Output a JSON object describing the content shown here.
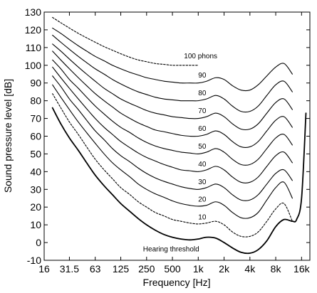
{
  "chart_data": {
    "type": "line",
    "title": "",
    "xlabel": "Frequency [Hz]",
    "ylabel": "Sound pressure level [dB]",
    "x_scale": "log",
    "xlim": [
      16,
      20000
    ],
    "ylim": [
      -10,
      130
    ],
    "grid": false,
    "legend": "none",
    "x_ticks": [
      {
        "value": 16,
        "label": "16"
      },
      {
        "value": 31.5,
        "label": "31.5"
      },
      {
        "value": 63,
        "label": "63"
      },
      {
        "value": 125,
        "label": "125"
      },
      {
        "value": 250,
        "label": "250"
      },
      {
        "value": 500,
        "label": "500"
      },
      {
        "value": 1000,
        "label": "1k"
      },
      {
        "value": 2000,
        "label": "2k"
      },
      {
        "value": 4000,
        "label": "4k"
      },
      {
        "value": 8000,
        "label": "8k"
      },
      {
        "value": 16000,
        "label": "16k"
      }
    ],
    "y_ticks": [
      {
        "value": -10,
        "label": "-10"
      },
      {
        "value": 0,
        "label": "0"
      },
      {
        "value": 10,
        "label": "10"
      },
      {
        "value": 20,
        "label": "20"
      },
      {
        "value": 30,
        "label": "30"
      },
      {
        "value": 40,
        "label": "40"
      },
      {
        "value": 50,
        "label": "50"
      },
      {
        "value": 60,
        "label": "60"
      },
      {
        "value": 70,
        "label": "70"
      },
      {
        "value": 80,
        "label": "80"
      },
      {
        "value": 90,
        "label": "90"
      },
      {
        "value": 100,
        "label": "100"
      },
      {
        "value": 110,
        "label": "110"
      },
      {
        "value": 120,
        "label": "120"
      },
      {
        "value": 130,
        "label": "130"
      }
    ],
    "annotations": [
      {
        "text": "100 phons",
        "x": 1000,
        "y": 104
      },
      {
        "text": "90",
        "x": 1000,
        "y": 93
      },
      {
        "text": "80",
        "x": 1000,
        "y": 83
      },
      {
        "text": "70",
        "x": 1000,
        "y": 73
      },
      {
        "text": "60",
        "x": 1000,
        "y": 63
      },
      {
        "text": "50",
        "x": 1000,
        "y": 53
      },
      {
        "text": "40",
        "x": 1000,
        "y": 43
      },
      {
        "text": "30",
        "x": 1000,
        "y": 33
      },
      {
        "text": "20",
        "x": 1000,
        "y": 23
      },
      {
        "text": "10",
        "x": 1000,
        "y": 13
      },
      {
        "text": "Hearing threshold",
        "x": 250,
        "y": -5
      }
    ],
    "series": [
      {
        "name": "Hearing threshold",
        "style": "solid-bold",
        "x": [
          20,
          25,
          31.5,
          40,
          50,
          63,
          80,
          100,
          125,
          160,
          200,
          250,
          315,
          400,
          500,
          630,
          800,
          1000,
          1250,
          1600,
          2000,
          2500,
          3150,
          4000,
          5000,
          6300,
          8000,
          10000,
          12500,
          14000,
          16000,
          18000
        ],
        "values": [
          76,
          67,
          59,
          52,
          45,
          38,
          32,
          27,
          22,
          17.5,
          13.5,
          10,
          7,
          4.5,
          3,
          2,
          1.5,
          2,
          3,
          2.5,
          0,
          -3,
          -5.5,
          -6,
          -4,
          1,
          9,
          13,
          12,
          13,
          25,
          73
        ]
      },
      {
        "name": "10",
        "style": "dashed",
        "x": [
          20,
          25,
          31.5,
          40,
          50,
          63,
          80,
          100,
          125,
          160,
          200,
          250,
          315,
          400,
          500,
          630,
          800,
          1000,
          1250,
          1600,
          2000,
          2500,
          3150,
          4000,
          5000,
          6300,
          8000,
          10000,
          12500
        ],
        "values": [
          84,
          76,
          68,
          61,
          54,
          47,
          41,
          36,
          31,
          27,
          23,
          20,
          17,
          15,
          13,
          12,
          11,
          10.5,
          11,
          12,
          10,
          6,
          3.5,
          3.5,
          6,
          12,
          19,
          22,
          12
        ]
      },
      {
        "name": "20",
        "style": "solid",
        "x": [
          20,
          25,
          31.5,
          40,
          50,
          63,
          80,
          100,
          125,
          160,
          200,
          250,
          315,
          400,
          500,
          630,
          800,
          1000,
          1250,
          1600,
          2000,
          2500,
          3150,
          4000,
          5000,
          6300,
          8000,
          10000,
          12500
        ],
        "values": [
          89,
          82,
          75,
          68,
          62,
          56,
          50,
          45,
          41,
          37,
          33,
          30,
          27.5,
          25.5,
          23.5,
          22,
          21,
          20.5,
          21,
          23,
          21,
          17,
          14,
          14,
          17,
          24,
          31,
          34,
          25
        ]
      },
      {
        "name": "30",
        "style": "solid",
        "x": [
          20,
          25,
          31.5,
          40,
          50,
          63,
          80,
          100,
          125,
          160,
          200,
          250,
          315,
          400,
          500,
          630,
          800,
          1000,
          1250,
          1600,
          2000,
          2500,
          3150,
          4000,
          5000,
          6300,
          8000,
          10000,
          12500
        ],
        "values": [
          94,
          88,
          81,
          75,
          69,
          63,
          58,
          53,
          49,
          45.5,
          42,
          39,
          36.5,
          34.5,
          33,
          31.5,
          30.5,
          30,
          31,
          33,
          31,
          27,
          24,
          24,
          27,
          33,
          39,
          41,
          35
        ]
      },
      {
        "name": "40",
        "style": "solid",
        "x": [
          20,
          25,
          31.5,
          40,
          50,
          63,
          80,
          100,
          125,
          160,
          200,
          250,
          315,
          400,
          500,
          630,
          800,
          1000,
          1250,
          1600,
          2000,
          2500,
          3150,
          4000,
          5000,
          6300,
          8000,
          10000,
          12500
        ],
        "values": [
          99,
          93,
          87,
          81,
          75.5,
          70,
          65,
          61,
          57,
          53.5,
          50.5,
          48,
          46,
          44,
          42.5,
          41,
          40.5,
          40,
          41,
          43,
          41,
          37,
          34,
          34,
          37,
          43,
          49,
          51,
          45
        ]
      },
      {
        "name": "50",
        "style": "solid",
        "x": [
          20,
          25,
          31.5,
          40,
          50,
          63,
          80,
          100,
          125,
          160,
          200,
          250,
          315,
          400,
          500,
          630,
          800,
          1000,
          1250,
          1600,
          2000,
          2500,
          3150,
          4000,
          5000,
          6300,
          8000,
          10000,
          12500
        ],
        "values": [
          103,
          98,
          92,
          87,
          82,
          77,
          72.5,
          68.5,
          65,
          62,
          59,
          56.5,
          54.5,
          53,
          52,
          51,
          50.5,
          50,
          51,
          53,
          51,
          47,
          44,
          44,
          47,
          53,
          59,
          61,
          55
        ]
      },
      {
        "name": "60",
        "style": "solid",
        "x": [
          20,
          25,
          31.5,
          40,
          50,
          63,
          80,
          100,
          125,
          160,
          200,
          250,
          315,
          400,
          500,
          630,
          800,
          1000,
          1250,
          1600,
          2000,
          2500,
          3150,
          4000,
          5000,
          6300,
          8000,
          10000,
          12500
        ],
        "values": [
          108,
          103,
          98,
          93,
          88.5,
          84,
          80,
          76.5,
          73,
          70,
          67.5,
          65.5,
          63.5,
          62.5,
          61.5,
          60.5,
          60,
          60,
          61,
          63,
          61,
          57,
          54,
          54,
          57,
          63,
          69,
          71,
          65
        ]
      },
      {
        "name": "70",
        "style": "solid",
        "x": [
          20,
          25,
          31.5,
          40,
          50,
          63,
          80,
          100,
          125,
          160,
          200,
          250,
          315,
          400,
          500,
          630,
          800,
          1000,
          1250,
          1600,
          2000,
          2500,
          3150,
          4000,
          5000,
          6300,
          8000,
          10000,
          12500
        ],
        "values": [
          112,
          108,
          103.5,
          99,
          95,
          91,
          87,
          84,
          81,
          78.5,
          76.5,
          74.5,
          73,
          72,
          71,
          70.5,
          70,
          70,
          71,
          73,
          71,
          67,
          64,
          64,
          67,
          73,
          79,
          81,
          75
        ]
      },
      {
        "name": "80",
        "style": "solid",
        "x": [
          20,
          25,
          31.5,
          40,
          50,
          63,
          80,
          100,
          125,
          160,
          200,
          250,
          315,
          400,
          500,
          630,
          800,
          1000,
          1250,
          1600,
          2000,
          2500,
          3150,
          4000,
          5000,
          6300,
          8000,
          10000,
          12500
        ],
        "values": [
          117,
          113,
          109,
          105,
          101.5,
          98,
          95,
          92,
          89.5,
          87,
          85,
          83.5,
          82,
          81,
          80.5,
          80,
          80,
          80,
          81,
          83,
          81,
          77,
          74,
          74,
          77,
          83,
          89,
          91,
          85
        ]
      },
      {
        "name": "90",
        "style": "solid",
        "x": [
          20,
          25,
          31.5,
          40,
          50,
          63,
          80,
          100,
          125,
          160,
          200,
          250,
          315,
          400,
          500,
          630,
          800,
          1000,
          1250,
          1600,
          2000,
          2500,
          3150,
          4000,
          5000,
          6300,
          8000,
          10000,
          12500
        ],
        "values": [
          121,
          118,
          114.5,
          111,
          108,
          105,
          102.5,
          100,
          98,
          96,
          94.5,
          93,
          92,
          91,
          90.5,
          90,
          90,
          90,
          91,
          93,
          92,
          88.5,
          86,
          86,
          89,
          94,
          99,
          101,
          95
        ]
      },
      {
        "name": "100 phons",
        "style": "dashed",
        "x": [
          20,
          25,
          31.5,
          40,
          50,
          63,
          80,
          100,
          125,
          160,
          200,
          250,
          315,
          400,
          500,
          630,
          800,
          1000
        ],
        "values": [
          127,
          124,
          121,
          118,
          115.5,
          113,
          110.5,
          108.5,
          106.5,
          104.5,
          103,
          102,
          101,
          100.5,
          100,
          100,
          100,
          100
        ]
      }
    ]
  }
}
